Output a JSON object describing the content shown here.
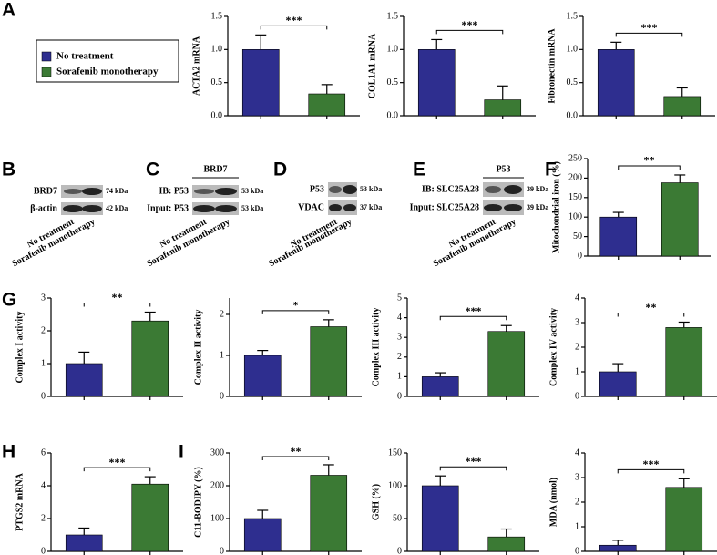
{
  "panels": [
    "A",
    "B",
    "C",
    "D",
    "E",
    "F",
    "G",
    "H",
    "I"
  ],
  "legend": {
    "items": [
      {
        "name": "No treatment",
        "color": "#2e2e8f"
      },
      {
        "name": "Sorafenib monotherapy",
        "color": "#3b7a34"
      }
    ]
  },
  "blot_lanes": [
    "No treatment",
    "Sorafenib monotherapy"
  ],
  "blots": [
    {
      "rows": [
        {
          "label": "BRD7",
          "kda": "74 kDa"
        },
        {
          "label": "β-actin",
          "kda": "42 kDa"
        }
      ]
    },
    {
      "header": "BRD7",
      "rows": [
        {
          "label": "IB: P53",
          "kda": "53 kDa"
        },
        {
          "label": "Input: P53",
          "kda": "53 kDa"
        }
      ]
    },
    {
      "rows": [
        {
          "label": "P53",
          "kda": "53 kDa"
        },
        {
          "label": "VDAC",
          "kda": "37 kDa"
        }
      ]
    },
    {
      "header": "P53",
      "rows": [
        {
          "label": "IB: SLC25A28",
          "kda": "39 kDa"
        },
        {
          "label": "Input: SLC25A28",
          "kda": "39 kDa"
        }
      ]
    }
  ],
  "chart_data": [
    {
      "type": "bar",
      "ylabel": "ACTA2 mRNA",
      "values": [
        1.0,
        0.33
      ],
      "errors": [
        0.22,
        0.14
      ],
      "colors": [
        "#2e2e8f",
        "#3b7a34"
      ],
      "ylim": [
        0,
        1.5
      ],
      "yticks": [
        {
          "value": 0,
          "label": "0.0"
        },
        0.5,
        {
          "value": 1,
          "label": "1.0"
        },
        1.5
      ],
      "significance": "***"
    },
    {
      "type": "bar",
      "ylabel": "COL1A1 mRNA",
      "values": [
        1.0,
        0.24
      ],
      "errors": [
        0.15,
        0.21
      ],
      "colors": [
        "#2e2e8f",
        "#3b7a34"
      ],
      "ylim": [
        0,
        1.5
      ],
      "yticks": [
        {
          "value": 0,
          "label": "0.0"
        },
        0.5,
        {
          "value": 1,
          "label": "1.0"
        },
        1.5
      ],
      "significance": "***"
    },
    {
      "type": "bar",
      "ylabel": "Fibronectin mRNA",
      "values": [
        1.0,
        0.29
      ],
      "errors": [
        0.11,
        0.13
      ],
      "colors": [
        "#2e2e8f",
        "#3b7a34"
      ],
      "ylim": [
        0,
        1.5
      ],
      "yticks": [
        {
          "value": 0,
          "label": "0.0"
        },
        0.5,
        {
          "value": 1,
          "label": "1.0"
        },
        1.5
      ],
      "significance": "***"
    },
    {
      "type": "bar",
      "ylabel": "Mitochondrial iron (%)",
      "values": [
        100,
        188
      ],
      "errors": [
        12,
        20
      ],
      "colors": [
        "#2e2e8f",
        "#3b7a34"
      ],
      "ylim": [
        0,
        250
      ],
      "yticks": [
        0,
        50,
        100,
        150,
        200,
        250
      ],
      "significance": "**"
    },
    {
      "type": "bar",
      "ylabel": "Complex I activity",
      "values": [
        1.0,
        2.3
      ],
      "errors": [
        0.35,
        0.27
      ],
      "colors": [
        "#2e2e8f",
        "#3b7a34"
      ],
      "ylim": [
        0,
        3
      ],
      "yticks": [
        0,
        1,
        2,
        3
      ],
      "significance": "**"
    },
    {
      "type": "bar",
      "ylabel": "Complex II activity",
      "values": [
        1.0,
        1.7
      ],
      "errors": [
        0.12,
        0.17
      ],
      "colors": [
        "#2e2e8f",
        "#3b7a34"
      ],
      "ylim": [
        0,
        2.4
      ],
      "yticks": [
        0,
        1,
        2
      ],
      "significance": "*"
    },
    {
      "type": "bar",
      "ylabel": "Complex III activity",
      "values": [
        1.0,
        3.3
      ],
      "errors": [
        0.2,
        0.3
      ],
      "colors": [
        "#2e2e8f",
        "#3b7a34"
      ],
      "ylim": [
        0,
        5
      ],
      "yticks": [
        0,
        1,
        2,
        3,
        4,
        5
      ],
      "significance": "***"
    },
    {
      "type": "bar",
      "ylabel": "Complex IV activity",
      "values": [
        1.0,
        2.8
      ],
      "errors": [
        0.33,
        0.22
      ],
      "colors": [
        "#2e2e8f",
        "#3b7a34"
      ],
      "ylim": [
        0,
        4
      ],
      "yticks": [
        0,
        1,
        2,
        3,
        4
      ],
      "significance": "**"
    },
    {
      "type": "bar",
      "ylabel": "PTGS2 mRNA",
      "values": [
        1.0,
        4.1
      ],
      "errors": [
        0.42,
        0.45
      ],
      "colors": [
        "#2e2e8f",
        "#3b7a34"
      ],
      "ylim": [
        0,
        6
      ],
      "yticks": [
        0,
        2,
        4,
        6
      ],
      "significance": "***"
    },
    {
      "type": "bar",
      "ylabel": "C11-BODIPY (%)",
      "values": [
        100,
        232
      ],
      "errors": [
        25,
        32
      ],
      "colors": [
        "#2e2e8f",
        "#3b7a34"
      ],
      "ylim": [
        0,
        300
      ],
      "yticks": [
        0,
        100,
        200,
        300
      ],
      "significance": "**"
    },
    {
      "type": "bar",
      "ylabel": "GSH (%)",
      "values": [
        100,
        22
      ],
      "errors": [
        15,
        12
      ],
      "colors": [
        "#2e2e8f",
        "#3b7a34"
      ],
      "ylim": [
        0,
        150
      ],
      "yticks": [
        0,
        50,
        100,
        150
      ],
      "significance": "***"
    },
    {
      "type": "bar",
      "ylabel": "MDA (nmol)",
      "values": [
        0.25,
        2.6
      ],
      "errors": [
        0.2,
        0.35
      ],
      "colors": [
        "#2e2e8f",
        "#3b7a34"
      ],
      "ylim": [
        0,
        4
      ],
      "yticks": [
        0,
        1,
        2,
        3,
        4
      ],
      "significance": "***"
    }
  ]
}
